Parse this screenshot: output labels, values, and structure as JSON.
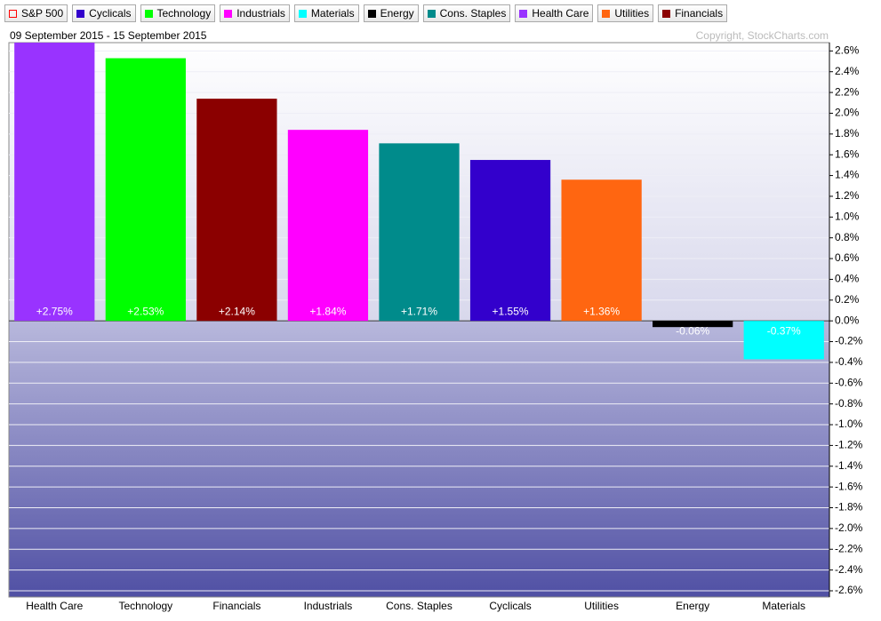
{
  "chart_data": {
    "type": "bar",
    "subtitle": "09 September 2015 - 15 September 2015",
    "copyright": "Copyright, StockCharts.com",
    "legend": [
      {
        "name": "S&P 500",
        "color": "#ff0000",
        "hollow": true
      },
      {
        "name": "Cyclicals",
        "color": "#3300cc"
      },
      {
        "name": "Technology",
        "color": "#00ff00"
      },
      {
        "name": "Industrials",
        "color": "#ff00ff"
      },
      {
        "name": "Materials",
        "color": "#00ffff"
      },
      {
        "name": "Energy",
        "color": "#000000"
      },
      {
        "name": "Cons. Staples",
        "color": "#008b8b"
      },
      {
        "name": "Health Care",
        "color": "#9933ff"
      },
      {
        "name": "Utilities",
        "color": "#ff6611"
      },
      {
        "name": "Financials",
        "color": "#8b0000"
      }
    ],
    "categories": [
      "Health Care",
      "Technology",
      "Financials",
      "Industrials",
      "Cons. Staples",
      "Cyclicals",
      "Utilities",
      "Energy",
      "Materials"
    ],
    "values": [
      2.75,
      2.53,
      2.14,
      1.84,
      1.71,
      1.55,
      1.36,
      -0.06,
      -0.37
    ],
    "value_labels": [
      "+2.75%",
      "+2.53%",
      "+2.14%",
      "+1.84%",
      "+1.71%",
      "+1.55%",
      "+1.36%",
      "-0.06%",
      "-0.37%"
    ],
    "colors": [
      "#9933ff",
      "#00ff00",
      "#8b0000",
      "#ff00ff",
      "#008b8b",
      "#3300cc",
      "#ff6611",
      "#000000",
      "#00ffff"
    ],
    "ylim": [
      -2.66,
      2.68
    ],
    "yticks": [
      {
        "value": 2.6,
        "label": "2.6%"
      },
      {
        "value": 2.4,
        "label": "2.4%"
      },
      {
        "value": 2.2,
        "label": "2.2%"
      },
      {
        "value": 2.0,
        "label": "2.0%"
      },
      {
        "value": 1.8,
        "label": "1.8%"
      },
      {
        "value": 1.6,
        "label": "1.6%"
      },
      {
        "value": 1.4,
        "label": "1.4%"
      },
      {
        "value": 1.2,
        "label": "1.2%"
      },
      {
        "value": 1.0,
        "label": "1.0%"
      },
      {
        "value": 0.8,
        "label": "0.8%"
      },
      {
        "value": 0.6,
        "label": "0.6%"
      },
      {
        "value": 0.4,
        "label": "0.4%"
      },
      {
        "value": 0.2,
        "label": "0.2%"
      },
      {
        "value": 0.0,
        "label": "0.0%"
      },
      {
        "value": -0.2,
        "label": "-0.2%"
      },
      {
        "value": -0.4,
        "label": "-0.4%"
      },
      {
        "value": -0.6,
        "label": "-0.6%"
      },
      {
        "value": -0.8,
        "label": "-0.8%"
      },
      {
        "value": -1.0,
        "label": "-1.0%"
      },
      {
        "value": -1.2,
        "label": "-1.2%"
      },
      {
        "value": -1.4,
        "label": "-1.4%"
      },
      {
        "value": -1.6,
        "label": "-1.6%"
      },
      {
        "value": -1.8,
        "label": "-1.8%"
      },
      {
        "value": -2.0,
        "label": "-2.0%"
      },
      {
        "value": -2.2,
        "label": "-2.2%"
      },
      {
        "value": -2.4,
        "label": "-2.4%"
      },
      {
        "value": -2.6,
        "label": "-2.6%"
      }
    ],
    "grid": true
  }
}
